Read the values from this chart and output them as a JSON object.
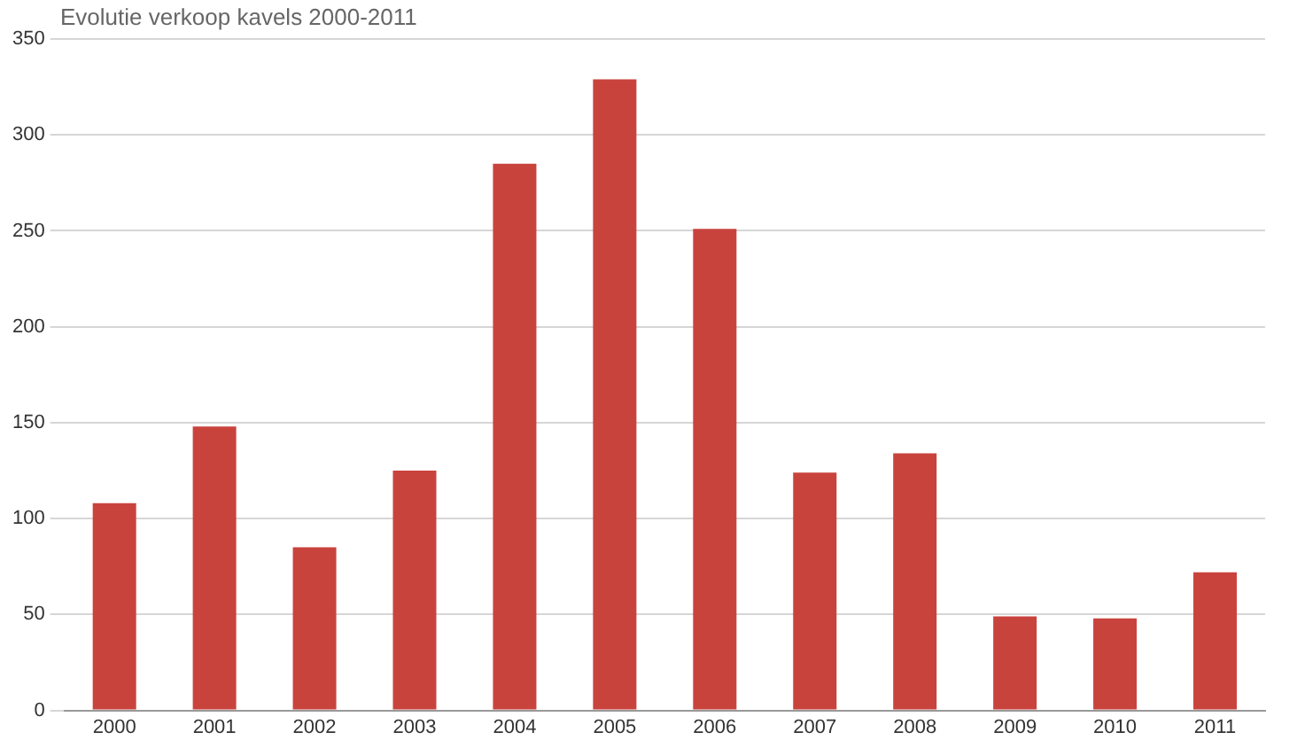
{
  "chart_data": {
    "type": "bar",
    "title": "Evolutie verkoop kavels 2000-2011",
    "categories": [
      "2000",
      "2001",
      "2002",
      "2003",
      "2004",
      "2005",
      "2006",
      "2007",
      "2008",
      "2009",
      "2010",
      "2011"
    ],
    "values": [
      108,
      148,
      85,
      125,
      285,
      329,
      251,
      124,
      134,
      49,
      48,
      72
    ],
    "color": "#c9433d",
    "ylim": [
      0,
      350
    ],
    "yticks": [
      0,
      50,
      100,
      150,
      200,
      250,
      300,
      350
    ],
    "grid": "y"
  }
}
